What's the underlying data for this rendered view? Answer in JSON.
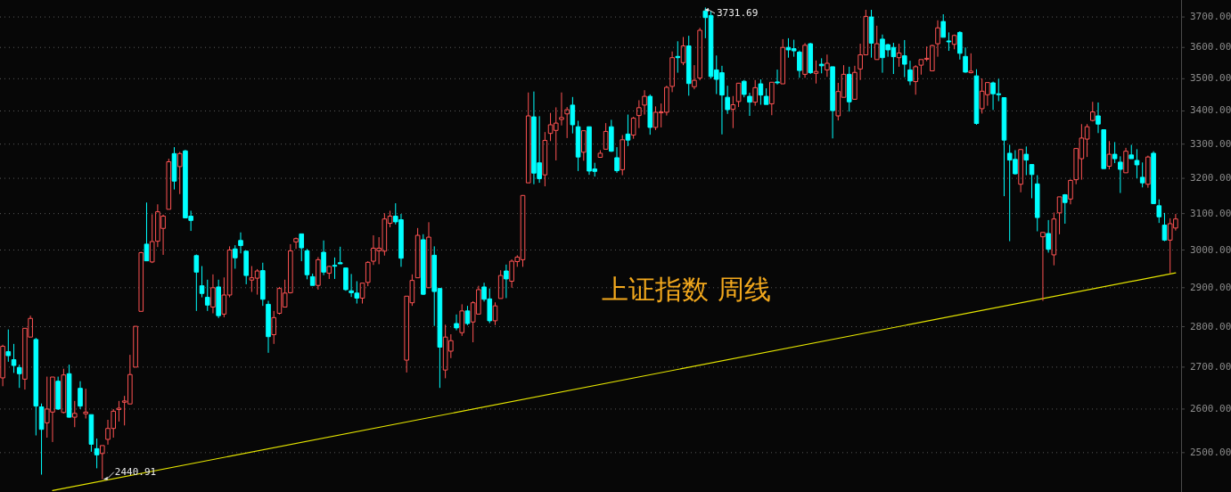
{
  "chart_data": {
    "type": "candlestick",
    "title": "上证指数 周线",
    "log": true,
    "grid": "y",
    "tick_labels": "y",
    "ylim": [
      2413,
      3757
    ],
    "yticks": [
      {
        "value": 2500,
        "label": "2500.00"
      },
      {
        "value": 2600,
        "label": "2600.00"
      },
      {
        "value": 2700,
        "label": "2700.00"
      },
      {
        "value": 2800,
        "label": "2800.00"
      },
      {
        "value": 2900,
        "label": "2900.00"
      },
      {
        "value": 3000,
        "label": "3000.00"
      },
      {
        "value": 3100,
        "label": "3100.00"
      },
      {
        "value": 3200,
        "label": "3200.00"
      },
      {
        "value": 3300,
        "label": "3300.00"
      },
      {
        "value": 3400,
        "label": "3400.00"
      },
      {
        "value": 3500,
        "label": "3500.00"
      },
      {
        "value": 3600,
        "label": "3600.00"
      },
      {
        "value": 3700,
        "label": "3700.00"
      }
    ],
    "categories": [
      null,
      null,
      null,
      null,
      null,
      null,
      null,
      null,
      null,
      null,
      null,
      null,
      null,
      null,
      null,
      null,
      null,
      null,
      null,
      null,
      null,
      null,
      null,
      null,
      null,
      null,
      null,
      null,
      null,
      null,
      null,
      null,
      null,
      null,
      null,
      null,
      null,
      null,
      null,
      null,
      null,
      null,
      null,
      null,
      null,
      null,
      null,
      null,
      null,
      null,
      null,
      null,
      null,
      null,
      null,
      null,
      null,
      null,
      null,
      null,
      null,
      null,
      null,
      null,
      null,
      null,
      null,
      null,
      null,
      null,
      null,
      null,
      null,
      null,
      null,
      null,
      null,
      null,
      null,
      null,
      null,
      null,
      null,
      null,
      null,
      null,
      null,
      null,
      null,
      null,
      null,
      null,
      null,
      null,
      null,
      null,
      null,
      null,
      null,
      null,
      null,
      null,
      null,
      null,
      null,
      null,
      null,
      null,
      null,
      null,
      null,
      null,
      null,
      null,
      null,
      null,
      null,
      null,
      null,
      null,
      null,
      null,
      null,
      null,
      null,
      null,
      null,
      null,
      null,
      null,
      null,
      null,
      null,
      null,
      null,
      null,
      null,
      null,
      null,
      null,
      null,
      null,
      null,
      null,
      null,
      null,
      null,
      null,
      null,
      null,
      null,
      null,
      null,
      null,
      null,
      null,
      null,
      null,
      null,
      null,
      null,
      null,
      null,
      null,
      null,
      null,
      null,
      null,
      null,
      null,
      null,
      null,
      null,
      null,
      null,
      null,
      null,
      null,
      null,
      null,
      null,
      null,
      null,
      null,
      null,
      null,
      null,
      null,
      null,
      null,
      null,
      null,
      null,
      null,
      null,
      null,
      null,
      null,
      null,
      null,
      null,
      null,
      null,
      null,
      null,
      null,
      null,
      null,
      null,
      null,
      null,
      null,
      null
    ],
    "ohlc": [
      [
        2674,
        2755,
        2654,
        2751
      ],
      [
        2738,
        2793,
        2713,
        2728
      ],
      [
        2718,
        2757,
        2686,
        2704
      ],
      [
        2699,
        2706,
        2650,
        2684
      ],
      [
        2671,
        2796,
        2646,
        2796
      ],
      [
        2774,
        2828,
        2774,
        2821
      ],
      [
        2768,
        2772,
        2539,
        2607
      ],
      [
        2605,
        2613,
        2451,
        2553
      ],
      [
        2568,
        2677,
        2534,
        2600
      ],
      [
        2593,
        2676,
        2524,
        2676
      ],
      [
        2666,
        2677,
        2598,
        2600
      ],
      [
        2592,
        2696,
        2590,
        2681
      ],
      [
        2684,
        2706,
        2580,
        2581
      ],
      [
        2581,
        2619,
        2558,
        2590
      ],
      [
        2649,
        2666,
        2600,
        2607
      ],
      [
        2589,
        2648,
        2578,
        2593
      ],
      [
        2587,
        2587,
        2502,
        2519
      ],
      [
        2509,
        2532,
        2465,
        2495
      ],
      [
        2498,
        2516,
        2440.91,
        2516
      ],
      [
        2530,
        2575,
        2518,
        2555
      ],
      [
        2555,
        2600,
        2534,
        2595
      ],
      [
        2599,
        2619,
        2571,
        2602
      ],
      [
        2616,
        2631,
        2562,
        2619
      ],
      [
        2612,
        2730,
        2612,
        2682
      ],
      [
        2700,
        2801,
        2700,
        2801
      ],
      [
        2839,
        2995,
        2839,
        2993
      ],
      [
        3016,
        3131,
        2971,
        2971
      ],
      [
        2968,
        3098,
        2965,
        3023
      ],
      [
        3024,
        3126,
        3008,
        3105
      ],
      [
        3059,
        3097,
        2987,
        3093
      ],
      [
        3112,
        3257,
        3112,
        3248
      ],
      [
        3272,
        3291,
        3168,
        3192
      ],
      [
        3234,
        3277,
        3155,
        3272
      ],
      [
        3280,
        3283,
        3088,
        3088
      ],
      [
        3093,
        3108,
        3052,
        3081
      ],
      [
        2985,
        2988,
        2840,
        2941
      ],
      [
        2905,
        2957,
        2875,
        2885
      ],
      [
        2875,
        2921,
        2840,
        2855
      ],
      [
        2850,
        2935,
        2834,
        2900
      ],
      [
        2902,
        2921,
        2822,
        2828
      ],
      [
        2832,
        2927,
        2824,
        2881
      ],
      [
        2881,
        3010,
        2875,
        3000
      ],
      [
        3003,
        3013,
        2950,
        2979
      ],
      [
        3026,
        3048,
        2991,
        3012
      ],
      [
        2997,
        2998,
        2909,
        2932
      ],
      [
        2920,
        2957,
        2889,
        2926
      ],
      [
        2925,
        2949,
        2882,
        2944
      ],
      [
        2945,
        2966,
        2853,
        2870
      ],
      [
        2857,
        2866,
        2735,
        2775
      ],
      [
        2780,
        2840,
        2757,
        2823
      ],
      [
        2834,
        2902,
        2831,
        2898
      ],
      [
        2850,
        2921,
        2850,
        2886
      ],
      [
        2887,
        3016,
        2885,
        2998
      ],
      [
        3022,
        3034,
        3003,
        3031
      ],
      [
        3044,
        3044,
        2970,
        3006
      ],
      [
        2998,
        3003,
        2922,
        2934
      ],
      [
        2929,
        2937,
        2906,
        2906
      ],
      [
        2906,
        2981,
        2895,
        2974
      ],
      [
        2994,
        3026,
        2933,
        2941
      ],
      [
        2938,
        2958,
        2923,
        2956
      ],
      [
        2959,
        2980,
        2923,
        2957
      ],
      [
        2966,
        3009,
        2963,
        2963
      ],
      [
        2952,
        2952,
        2892,
        2895
      ],
      [
        2892,
        2936,
        2876,
        2887
      ],
      [
        2886,
        2917,
        2859,
        2873
      ],
      [
        2873,
        2912,
        2859,
        2912
      ],
      [
        2914,
        2970,
        2904,
        2967
      ],
      [
        2970,
        3040,
        2960,
        3005
      ],
      [
        2998,
        3035,
        2962,
        3005
      ],
      [
        2997,
        3101,
        2985,
        3085
      ],
      [
        3073,
        3108,
        3062,
        3093
      ],
      [
        3093,
        3129,
        3070,
        3077
      ],
      [
        3083,
        3099,
        2955,
        2978
      ],
      [
        2717,
        2878,
        2687,
        2878
      ],
      [
        2861,
        2935,
        2853,
        2919
      ],
      [
        2926,
        3060,
        2926,
        3040
      ],
      [
        3028,
        3043,
        2881,
        2883
      ],
      [
        2900,
        3076,
        2900,
        3035
      ],
      [
        2986,
        3010,
        2802,
        2890
      ],
      [
        2898,
        2898,
        2650,
        2749
      ],
      [
        2693,
        2805,
        2673,
        2774
      ],
      [
        2739,
        2781,
        2722,
        2765
      ],
      [
        2808,
        2831,
        2791,
        2797
      ],
      [
        2785,
        2857,
        2777,
        2840
      ],
      [
        2840,
        2853,
        2804,
        2808
      ],
      [
        2812,
        2865,
        2761,
        2861
      ],
      [
        2832,
        2905,
        2832,
        2895
      ],
      [
        2902,
        2913,
        2864,
        2870
      ],
      [
        2871,
        2898,
        2809,
        2815
      ],
      [
        2815,
        2862,
        2804,
        2853
      ],
      [
        2872,
        2946,
        2872,
        2932
      ],
      [
        2944,
        2961,
        2873,
        2923
      ],
      [
        2917,
        2975,
        2900,
        2970
      ],
      [
        2969,
        2986,
        2955,
        2981
      ],
      [
        2974,
        3152,
        2955,
        3151
      ],
      [
        3187,
        3457,
        3187,
        3385
      ],
      [
        3382,
        3460,
        3183,
        3215
      ],
      [
        3245,
        3384,
        3187,
        3199
      ],
      [
        3210,
        3336,
        3177,
        3311
      ],
      [
        3332,
        3394,
        3309,
        3358
      ],
      [
        3341,
        3411,
        3252,
        3363
      ],
      [
        3374,
        3457,
        3356,
        3380
      ],
      [
        3391,
        3412,
        3318,
        3404
      ],
      [
        3418,
        3443,
        3332,
        3358
      ],
      [
        3352,
        3370,
        3221,
        3262
      ],
      [
        3276,
        3340,
        3251,
        3340
      ],
      [
        3352,
        3352,
        3210,
        3221
      ],
      [
        3227,
        3245,
        3205,
        3220
      ],
      [
        3261,
        3282,
        3261,
        3273
      ],
      [
        3285,
        3363,
        3285,
        3338
      ],
      [
        3352,
        3373,
        3277,
        3279
      ],
      [
        3260,
        3291,
        3216,
        3222
      ],
      [
        3225,
        3327,
        3209,
        3313
      ],
      [
        3330,
        3389,
        3294,
        3312
      ],
      [
        3327,
        3382,
        3316,
        3378
      ],
      [
        3386,
        3433,
        3348,
        3410
      ],
      [
        3418,
        3464,
        3389,
        3445
      ],
      [
        3445,
        3451,
        3328,
        3350
      ],
      [
        3350,
        3414,
        3342,
        3396
      ],
      [
        3395,
        3423,
        3350,
        3397
      ],
      [
        3396,
        3478,
        3386,
        3473
      ],
      [
        3476,
        3587,
        3458,
        3567
      ],
      [
        3571,
        3620,
        3519,
        3567
      ],
      [
        3551,
        3634,
        3543,
        3605
      ],
      [
        3605,
        3638,
        3447,
        3485
      ],
      [
        3475,
        3543,
        3467,
        3495
      ],
      [
        3502,
        3664,
        3495,
        3656
      ],
      [
        3720,
        3731.69,
        3630,
        3698
      ],
      [
        3705,
        3720,
        3500,
        3507
      ],
      [
        3528,
        3574,
        3452,
        3498
      ],
      [
        3519,
        3541,
        3329,
        3449
      ],
      [
        3442,
        3478,
        3391,
        3404
      ],
      [
        3405,
        3446,
        3348,
        3419
      ],
      [
        3429,
        3487,
        3412,
        3486
      ],
      [
        3492,
        3496,
        3442,
        3451
      ],
      [
        3445,
        3456,
        3385,
        3427
      ],
      [
        3427,
        3496,
        3416,
        3472
      ],
      [
        3484,
        3498,
        3419,
        3449
      ],
      [
        3445,
        3470,
        3420,
        3420
      ],
      [
        3422,
        3489,
        3387,
        3489
      ],
      [
        3490,
        3529,
        3482,
        3488
      ],
      [
        3484,
        3627,
        3484,
        3600
      ],
      [
        3600,
        3630,
        3567,
        3592
      ],
      [
        3596,
        3625,
        3570,
        3589
      ],
      [
        3585,
        3590,
        3503,
        3526
      ],
      [
        3514,
        3614,
        3503,
        3607
      ],
      [
        3612,
        3615,
        3515,
        3519
      ],
      [
        3517,
        3558,
        3485,
        3523
      ],
      [
        3546,
        3565,
        3517,
        3541
      ],
      [
        3528,
        3577,
        3506,
        3549
      ],
      [
        3538,
        3538,
        3317,
        3401
      ],
      [
        3385,
        3487,
        3371,
        3460
      ],
      [
        3442,
        3543,
        3442,
        3514
      ],
      [
        3514,
        3538,
        3398,
        3428
      ],
      [
        3436,
        3541,
        3436,
        3520
      ],
      [
        3531,
        3612,
        3496,
        3576
      ],
      [
        3576,
        3724,
        3576,
        3702
      ],
      [
        3700,
        3724,
        3567,
        3614
      ],
      [
        3561,
        3671,
        3561,
        3612
      ],
      [
        3627,
        3642,
        3519,
        3567
      ],
      [
        3609,
        3612,
        3570,
        3592
      ],
      [
        3600,
        3615,
        3515,
        3570
      ],
      [
        3567,
        3612,
        3538,
        3582
      ],
      [
        3573,
        3624,
        3505,
        3546
      ],
      [
        3528,
        3557,
        3480,
        3493
      ],
      [
        3491,
        3543,
        3450,
        3538
      ],
      [
        3543,
        3561,
        3513,
        3561
      ],
      [
        3562,
        3603,
        3556,
        3565
      ],
      [
        3525,
        3609,
        3525,
        3606
      ],
      [
        3612,
        3689,
        3570,
        3664
      ],
      [
        3685,
        3709,
        3633,
        3633
      ],
      [
        3621,
        3649,
        3589,
        3619
      ],
      [
        3610,
        3642,
        3594,
        3639
      ],
      [
        3649,
        3653,
        3561,
        3581
      ],
      [
        3571,
        3600,
        3519,
        3521
      ],
      [
        3519,
        3581,
        3517,
        3524
      ],
      [
        3509,
        3530,
        3358,
        3362
      ],
      [
        3407,
        3501,
        3392,
        3461
      ],
      [
        3450,
        3488,
        3416,
        3488
      ],
      [
        3487,
        3491,
        3403,
        3453
      ],
      [
        3453,
        3500,
        3430,
        3450
      ],
      [
        3441,
        3441,
        3149,
        3312
      ],
      [
        3273,
        3298,
        3024,
        3253
      ],
      [
        3255,
        3282,
        3211,
        3213
      ],
      [
        3183,
        3286,
        3160,
        3284
      ],
      [
        3270,
        3293,
        3209,
        3253
      ],
      [
        3240,
        3240,
        3143,
        3211
      ],
      [
        3184,
        3209,
        3051,
        3089
      ],
      [
        3036,
        3048,
        2866,
        3048
      ],
      [
        3045,
        3082,
        2993,
        3002
      ],
      [
        2987,
        3103,
        2959,
        3085
      ],
      [
        3102,
        3147,
        3043,
        3147
      ],
      [
        3153,
        3155,
        3072,
        3131
      ],
      [
        3141,
        3197,
        3126,
        3194
      ],
      [
        3196,
        3288,
        3183,
        3287
      ],
      [
        3257,
        3360,
        3196,
        3318
      ],
      [
        3315,
        3360,
        3262,
        3352
      ],
      [
        3371,
        3428,
        3368,
        3397
      ],
      [
        3385,
        3426,
        3333,
        3360
      ],
      [
        3343,
        3343,
        3228,
        3228
      ],
      [
        3235,
        3309,
        3226,
        3270
      ],
      [
        3270,
        3306,
        3244,
        3257
      ],
      [
        3247,
        3264,
        3158,
        3226
      ],
      [
        3216,
        3289,
        3216,
        3279
      ],
      [
        3268,
        3298,
        3257,
        3257
      ],
      [
        3252,
        3285,
        3200,
        3239
      ],
      [
        3203,
        3246,
        3174,
        3187
      ],
      [
        3183,
        3266,
        3173,
        3262
      ],
      [
        3273,
        3279,
        3128,
        3128
      ],
      [
        3122,
        3140,
        3074,
        3091
      ],
      [
        3068,
        3102,
        3024,
        3027
      ],
      [
        3027,
        3087,
        2938,
        3072
      ],
      [
        3060,
        3099,
        3053,
        3085
      ]
    ],
    "colors": [
      "#ff5353",
      "#00ffff",
      "#00ffff",
      "#00ffff",
      "#ff5353",
      "#ff5353",
      "#00ffff",
      "#00ffff",
      "#ff5353",
      "#ff5353",
      "#00ffff",
      "#ff5353",
      "#00ffff",
      "#ff5353",
      "#00ffff",
      "#ff5353",
      "#00ffff",
      "#00ffff",
      "#ff5353",
      "#ff5353",
      "#ff5353",
      "#ff5353",
      "#ff5353",
      "#ff5353",
      "#ff5353",
      "#ff5353",
      "#00ffff",
      "#ff5353",
      "#ff5353",
      "#ff5353",
      "#ff5353",
      "#00ffff",
      "#ff5353",
      "#00ffff",
      "#00ffff",
      "#00ffff",
      "#00ffff",
      "#00ffff",
      "#ff5353",
      "#00ffff",
      "#ff5353",
      "#ff5353",
      "#00ffff",
      "#00ffff",
      "#00ffff",
      "#ff5353",
      "#ff5353",
      "#00ffff",
      "#00ffff",
      "#ff5353",
      "#ff5353",
      "#ff5353",
      "#ff5353",
      "#ff5353",
      "#00ffff",
      "#00ffff",
      "#00ffff",
      "#ff5353",
      "#00ffff",
      "#ff5353",
      "#00ffff",
      "#00ffff",
      "#00ffff",
      "#00ffff",
      "#00ffff",
      "#ff5353",
      "#ff5353",
      "#ff5353",
      "#ff5353",
      "#ff5353",
      "#ff5353",
      "#00ffff",
      "#00ffff",
      "#ff5353",
      "#ff5353",
      "#ff5353",
      "#00ffff",
      "#ff5353",
      "#00ffff",
      "#00ffff",
      "#ff5353",
      "#ff5353",
      "#00ffff",
      "#ff5353",
      "#00ffff",
      "#ff5353",
      "#ff5353",
      "#00ffff",
      "#00ffff",
      "#ff5353",
      "#ff5353",
      "#00ffff",
      "#ff5353",
      "#ff5353",
      "#ff5353",
      "#ff5353",
      "#00ffff",
      "#00ffff",
      "#ff5353",
      "#ff5353",
      "#ff5353",
      "#ff5353",
      "#ff5353",
      "#00ffff",
      "#00ffff",
      "#ff5353",
      "#00ffff",
      "#00ffff",
      "#ff5353",
      "#ff5353",
      "#00ffff",
      "#00ffff",
      "#ff5353",
      "#00ffff",
      "#ff5353",
      "#ff5353",
      "#ff5353",
      "#00ffff",
      "#ff5353",
      "#ff5353",
      "#ff5353",
      "#ff5353",
      "#00ffff",
      "#ff5353",
      "#00ffff",
      "#ff5353",
      "#ff5353",
      "#00ffff",
      "#00ffff",
      "#00ffff",
      "#00ffff",
      "#00ffff",
      "#ff5353",
      "#ff5353",
      "#00ffff",
      "#00ffff",
      "#ff5353",
      "#00ffff",
      "#00ffff",
      "#ff5353",
      "#00ffff",
      "#ff5353",
      "#00ffff",
      "#00ffff",
      "#00ffff",
      "#ff5353",
      "#00ffff",
      "#ff5353",
      "#00ffff",
      "#ff5353",
      "#00ffff",
      "#ff5353",
      "#ff5353",
      "#00ffff",
      "#ff5353",
      "#ff5353",
      "#ff5353",
      "#00ffff",
      "#ff5353",
      "#00ffff",
      "#00ffff",
      "#00ffff",
      "#ff5353",
      "#00ffff",
      "#00ffff",
      "#ff5353",
      "#ff5353",
      "#ff5353",
      "#ff5353",
      "#ff5353",
      "#00ffff",
      "#00ffff",
      "#ff5353",
      "#00ffff",
      "#00ffff",
      "#ff5353",
      "#00ffff",
      "#ff5353",
      "#ff5353",
      "#00ffff",
      "#00ffff",
      "#00ffff",
      "#00ffff",
      "#00ffff",
      "#ff5353",
      "#00ffff",
      "#00ffff",
      "#00ffff",
      "#ff5353",
      "#00ffff",
      "#ff5353",
      "#ff5353",
      "#00ffff",
      "#ff5353",
      "#ff5353",
      "#ff5353",
      "#ff5353",
      "#ff5353",
      "#00ffff",
      "#00ffff",
      "#ff5353",
      "#00ffff",
      "#00ffff",
      "#ff5353",
      "#00ffff",
      "#00ffff",
      "#00ffff",
      "#ff5353",
      "#00ffff",
      "#00ffff",
      "#00ffff",
      "#ff5353",
      "#ff5353"
    ],
    "series": [
      {
        "type": "line",
        "color": "#e6e600",
        "values": [
          null,
          null,
          null,
          null,
          null,
          null,
          null,
          null,
          null,
          2416,
          null,
          null,
          null,
          null,
          null,
          null,
          null,
          null,
          null,
          null,
          null,
          null,
          null,
          null,
          null,
          null,
          null,
          null,
          null,
          null,
          null,
          null,
          null,
          null,
          null,
          null,
          null,
          null,
          null,
          null,
          null,
          null,
          null,
          null,
          null,
          null,
          null,
          null,
          null,
          null,
          null,
          null,
          null,
          null,
          null,
          null,
          null,
          null,
          null,
          null,
          null,
          null,
          null,
          null,
          null,
          null,
          null,
          null,
          null,
          null,
          null,
          null,
          null,
          null,
          null,
          null,
          null,
          null,
          null,
          null,
          null,
          null,
          null,
          null,
          null,
          null,
          null,
          null,
          null,
          null,
          null,
          null,
          null,
          null,
          null,
          null,
          null,
          null,
          null,
          null,
          null,
          null,
          null,
          null,
          null,
          null,
          null,
          null,
          null,
          null,
          null,
          null,
          null,
          null,
          null,
          null,
          null,
          null,
          null,
          null,
          null,
          null,
          null,
          null,
          null,
          null,
          null,
          null,
          null,
          null,
          null,
          null,
          null,
          null,
          null,
          null,
          null,
          null,
          null,
          null,
          null,
          null,
          null,
          null,
          null,
          null,
          null,
          null,
          null,
          null,
          null,
          null,
          null,
          null,
          null,
          null,
          null,
          null,
          null,
          null,
          null,
          null,
          null,
          null,
          null,
          null,
          null,
          null,
          null,
          null,
          null,
          null,
          null,
          null,
          null,
          null,
          null,
          null,
          null,
          null,
          null,
          null,
          null,
          null,
          null,
          null,
          null,
          null,
          null,
          null,
          null,
          null,
          null,
          null,
          null,
          null,
          null,
          null,
          null,
          null,
          null,
          null,
          null,
          null,
          null,
          null,
          null,
          null,
          null,
          null,
          null,
          null,
          2939
        ]
      }
    ],
    "annotations": [
      {
        "text": "2440.91",
        "y": 2440.91
      },
      "3731.69"
    ]
  }
}
